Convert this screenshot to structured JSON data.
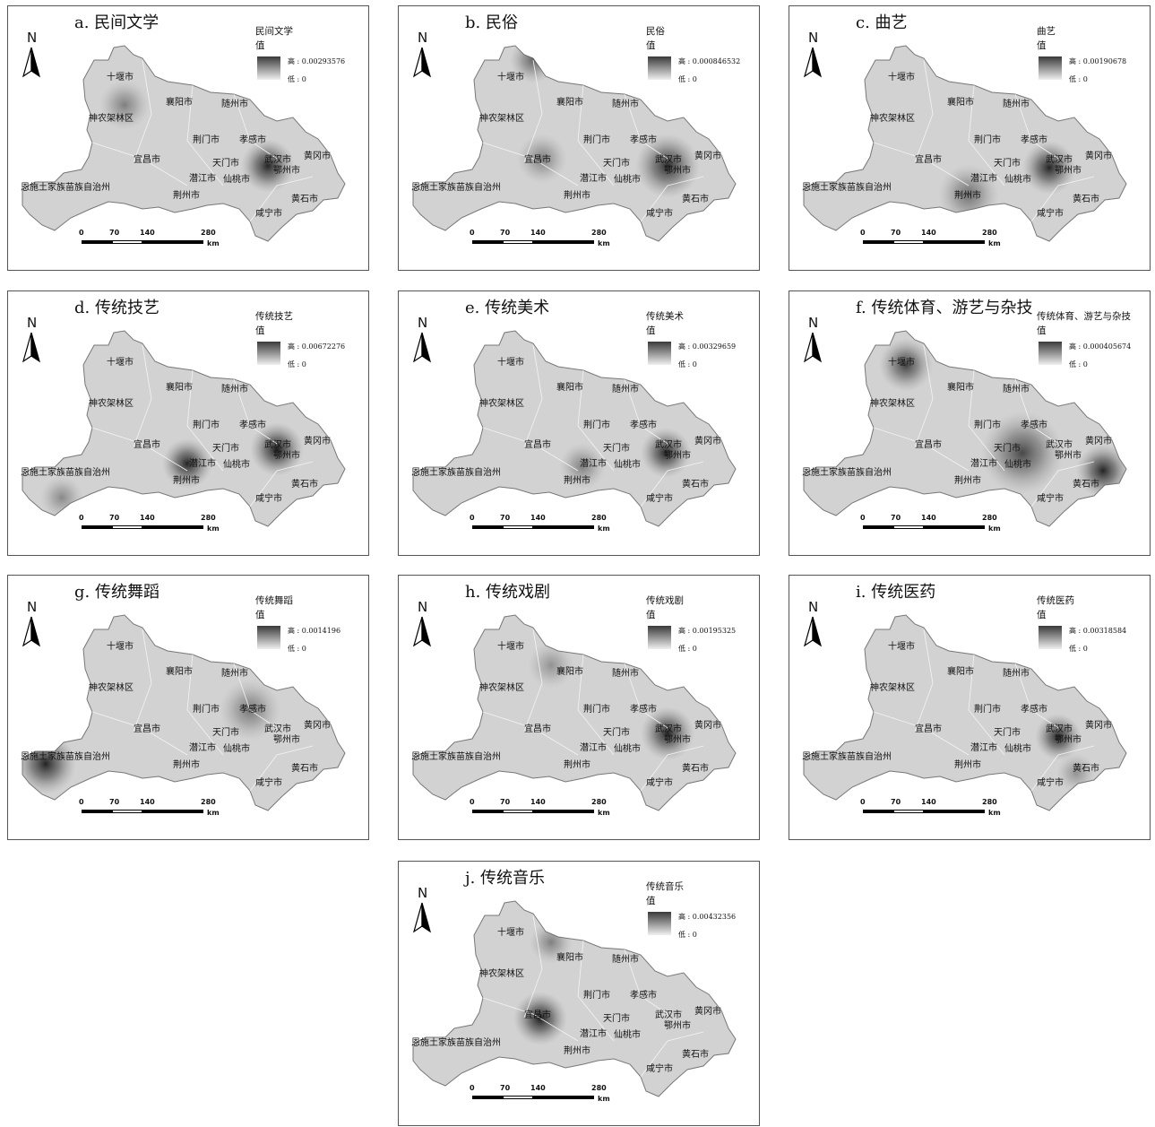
{
  "panels": [
    {
      "title": "a. 民间文学",
      "legend_name": "民间文学",
      "legend_value": "值",
      "high": "高 : 0.00293576",
      "low": "低 : 0",
      "hotspots": [
        {
          "cx": 290,
          "cy": 178,
          "r": 30,
          "o": 0.95
        },
        {
          "cx": 130,
          "cy": 110,
          "r": 28,
          "o": 0.45
        }
      ]
    },
    {
      "title": "b. 民俗",
      "legend_name": "民俗",
      "legend_value": "值",
      "high": "高 : 0.000846532",
      "low": "低 : 0",
      "hotspots": [
        {
          "cx": 300,
          "cy": 178,
          "r": 36,
          "o": 0.9
        },
        {
          "cx": 150,
          "cy": 60,
          "r": 26,
          "o": 0.6
        },
        {
          "cx": 160,
          "cy": 170,
          "r": 28,
          "o": 0.45
        }
      ]
    },
    {
      "title": "c. 曲艺",
      "legend_name": "曲艺",
      "legend_value": "值",
      "high": "高 : 0.00190678",
      "low": "低 : 0",
      "hotspots": [
        {
          "cx": 290,
          "cy": 180,
          "r": 30,
          "o": 0.95
        },
        {
          "cx": 200,
          "cy": 210,
          "r": 34,
          "o": 0.55
        }
      ]
    },
    {
      "title": "d. 传统技艺",
      "legend_name": "传统技艺",
      "legend_value": "值",
      "high": "高 : 0.00672276",
      "low": "低 : 0",
      "hotspots": [
        {
          "cx": 300,
          "cy": 176,
          "r": 30,
          "o": 1.0
        },
        {
          "cx": 200,
          "cy": 192,
          "r": 28,
          "o": 0.95
        },
        {
          "cx": 60,
          "cy": 230,
          "r": 24,
          "o": 0.4
        }
      ]
    },
    {
      "title": "e. 传统美术",
      "legend_name": "传统美术",
      "legend_value": "值",
      "high": "高 : 0.00329659",
      "low": "低 : 0",
      "hotspots": [
        {
          "cx": 298,
          "cy": 180,
          "r": 28,
          "o": 0.95
        },
        {
          "cx": 205,
          "cy": 195,
          "r": 26,
          "o": 0.45
        }
      ]
    },
    {
      "title": "f. 传统体育、游艺与杂技",
      "legend_name": "传统体育、游艺与杂技",
      "legend_value": "值",
      "high": "高 : 0.000405674",
      "low": "低 : 0",
      "hotspots": [
        {
          "cx": 130,
          "cy": 82,
          "r": 30,
          "o": 0.8
        },
        {
          "cx": 260,
          "cy": 180,
          "r": 46,
          "o": 0.75
        },
        {
          "cx": 350,
          "cy": 200,
          "r": 30,
          "o": 0.95
        }
      ]
    },
    {
      "title": "g. 传统舞蹈",
      "legend_name": "传统舞蹈",
      "legend_value": "值",
      "high": "高 : 0.0014196",
      "low": "低 : 0",
      "hotspots": [
        {
          "cx": 42,
          "cy": 210,
          "r": 34,
          "o": 0.95
        },
        {
          "cx": 270,
          "cy": 150,
          "r": 34,
          "o": 0.5
        }
      ]
    },
    {
      "title": "h. 传统戏剧",
      "legend_name": "传统戏剧",
      "legend_value": "值",
      "high": "高 : 0.00195325",
      "low": "低 : 0",
      "hotspots": [
        {
          "cx": 300,
          "cy": 176,
          "r": 30,
          "o": 0.95
        },
        {
          "cx": 170,
          "cy": 100,
          "r": 26,
          "o": 0.35
        }
      ]
    },
    {
      "title": "i. 传统医药",
      "legend_name": "传统医药",
      "legend_value": "值",
      "high": "高 : 0.00318584",
      "low": "低 : 0",
      "hotspots": [
        {
          "cx": 300,
          "cy": 180,
          "r": 26,
          "o": 0.95
        },
        {
          "cx": 320,
          "cy": 220,
          "r": 22,
          "o": 0.35
        }
      ]
    },
    {
      "title": "j. 传统音乐",
      "legend_name": "传统音乐",
      "legend_value": "值",
      "high": "高 : 0.00432356",
      "low": "低 : 0",
      "hotspots": [
        {
          "cx": 158,
          "cy": 175,
          "r": 30,
          "o": 1.0
        },
        {
          "cx": 170,
          "cy": 90,
          "r": 24,
          "o": 0.45
        }
      ]
    }
  ],
  "cities": [
    {
      "name": "十堰市",
      "x": 110,
      "y": 82
    },
    {
      "name": "襄阳市",
      "x": 176,
      "y": 110
    },
    {
      "name": "随州市",
      "x": 238,
      "y": 112
    },
    {
      "name": "神农架林区",
      "x": 90,
      "y": 128
    },
    {
      "name": "荆门市",
      "x": 206,
      "y": 152
    },
    {
      "name": "孝感市",
      "x": 258,
      "y": 152
    },
    {
      "name": "宜昌市",
      "x": 140,
      "y": 174
    },
    {
      "name": "天门市",
      "x": 228,
      "y": 178
    },
    {
      "name": "武汉市",
      "x": 286,
      "y": 174
    },
    {
      "name": "黄冈市",
      "x": 330,
      "y": 170
    },
    {
      "name": "鄂州市",
      "x": 296,
      "y": 186
    },
    {
      "name": "潜江市",
      "x": 202,
      "y": 195
    },
    {
      "name": "仙桃市",
      "x": 240,
      "y": 196
    },
    {
      "name": "恩施土家族苗族自治州",
      "x": 14,
      "y": 205
    },
    {
      "name": "荆州市",
      "x": 184,
      "y": 214
    },
    {
      "name": "黄石市",
      "x": 316,
      "y": 218
    },
    {
      "name": "咸宁市",
      "x": 276,
      "y": 234
    }
  ],
  "north_label": "N",
  "scale": {
    "ticks": [
      "0",
      "70",
      "140",
      "280"
    ],
    "unit": "km"
  }
}
